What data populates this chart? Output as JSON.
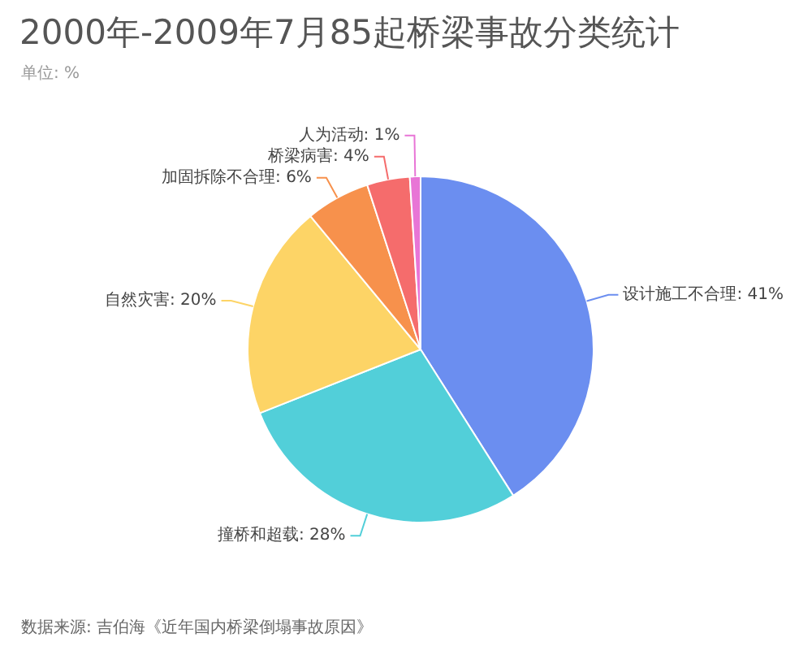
{
  "chart_data": {
    "type": "pie",
    "title": "2000年-2009年7月85起桥梁事故分类统计",
    "subtitle": "单位: %",
    "categories": [
      "设计施工不合理",
      "撞桥和超载",
      "自然灾害",
      "加固拆除不合理",
      "桥梁病害",
      "人为活动"
    ],
    "values": [
      41,
      28,
      20,
      6,
      4,
      1
    ],
    "colors": [
      "#6b8ef0",
      "#52cfd9",
      "#fdd466",
      "#f7914c",
      "#f56c6c",
      "#e875d6"
    ],
    "value_labels": [
      "41%",
      "28%",
      "20%",
      "6%",
      "4%",
      "1%"
    ],
    "annotations": [
      "数据来源: 吉伯海《近年国内桥梁倒塌事故原因》"
    ]
  }
}
